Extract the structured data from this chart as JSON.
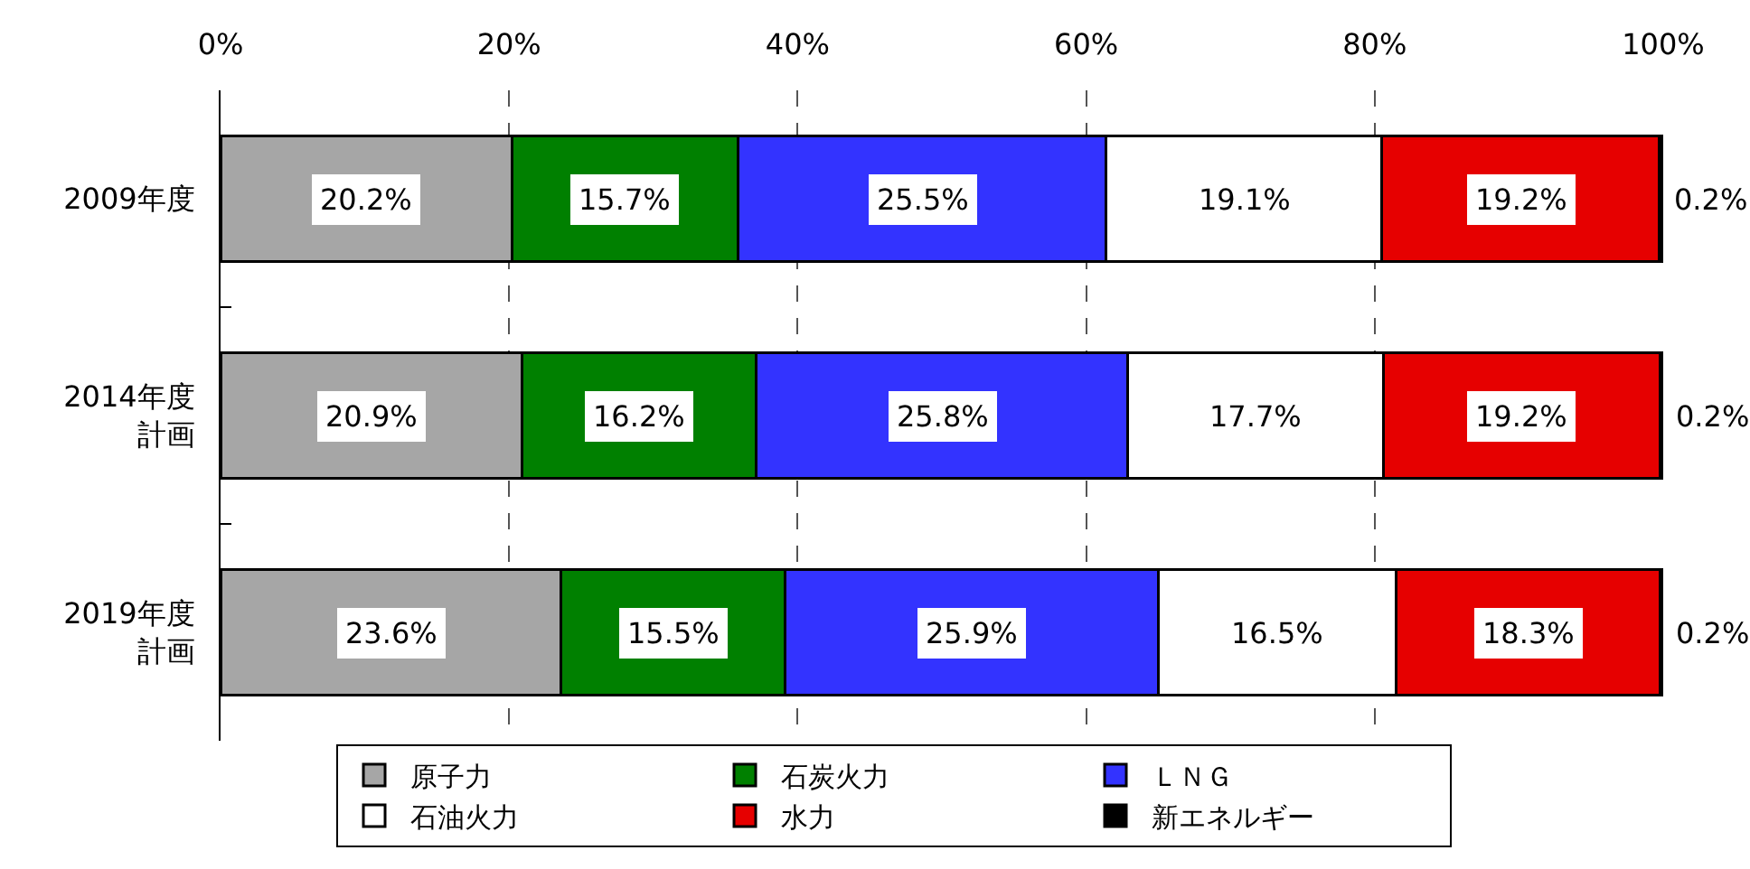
{
  "chart_data": {
    "type": "bar",
    "orientation": "horizontal",
    "stacked": true,
    "categories": [
      "2009年度",
      "2014年度計画",
      "2019年度計画"
    ],
    "series": [
      {
        "name": "原子力",
        "color": "#a6a6a6",
        "values": [
          20.2,
          20.9,
          23.6
        ],
        "value_labels": [
          "20.2%",
          "20.9%",
          "23.6%"
        ]
      },
      {
        "name": "石炭火力",
        "color": "#008000",
        "values": [
          15.7,
          16.2,
          15.5
        ],
        "value_labels": [
          "15.7%",
          "16.2%",
          "15.5%"
        ]
      },
      {
        "name": "ＬＮＧ",
        "color": "#3333ff",
        "values": [
          25.5,
          25.8,
          25.9
        ],
        "value_labels": [
          "25.5%",
          "25.8%",
          "25.9%"
        ]
      },
      {
        "name": "石油火力",
        "color": "#ffffff",
        "values": [
          19.1,
          17.7,
          16.5
        ],
        "value_labels": [
          "19.1%",
          "17.7%",
          "16.5%"
        ]
      },
      {
        "name": "水力",
        "color": "#e60000",
        "values": [
          19.2,
          19.2,
          18.3
        ],
        "value_labels": [
          "19.2%",
          "19.2%",
          "18.3%"
        ]
      },
      {
        "name": "新エネルギー",
        "color": "#000000",
        "values": [
          0.2,
          0.2,
          0.2
        ],
        "value_labels": [
          "0.2%",
          "0.2%",
          "0.2%"
        ]
      }
    ],
    "xlim": [
      0,
      100
    ],
    "xticks": [
      {
        "value": 0,
        "label": "0%"
      },
      {
        "value": 20,
        "label": "20%"
      },
      {
        "value": 40,
        "label": "40%"
      },
      {
        "value": 60,
        "label": "60%"
      },
      {
        "value": 80,
        "label": "80%"
      },
      {
        "value": 100,
        "label": "100%"
      }
    ],
    "grid": "x",
    "legend": "bottom"
  }
}
